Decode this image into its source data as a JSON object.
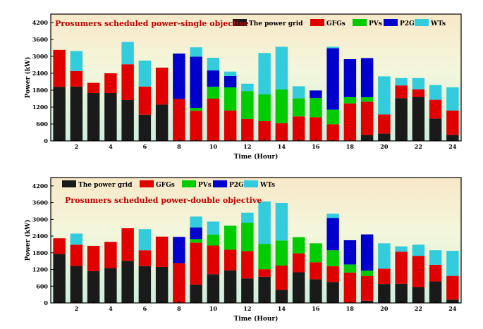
{
  "chart_data": [
    {
      "type": "bar",
      "stacked": true,
      "title": "Prosumers scheduled power-single objective",
      "xlabel": "Time (Hour)",
      "ylabel": "Power (kW)",
      "ylim": [
        0,
        4500
      ],
      "yticks": [
        0,
        600,
        1200,
        1800,
        2400,
        3000,
        3600,
        4200
      ],
      "xticks": [
        2,
        4,
        6,
        8,
        10,
        12,
        14,
        16,
        18,
        20,
        22,
        24
      ],
      "legend_position": "top-right",
      "categories": [
        1,
        2,
        3,
        4,
        5,
        6,
        7,
        8,
        9,
        10,
        11,
        12,
        13,
        14,
        15,
        16,
        17,
        18,
        19,
        20,
        21,
        22,
        23,
        24
      ],
      "series": [
        {
          "name": "The power grid",
          "color": "#1a1a1a",
          "values": [
            1920,
            1930,
            1700,
            1700,
            1450,
            930,
            1290,
            0,
            0,
            0,
            0,
            0,
            0,
            0,
            0,
            0,
            0,
            0,
            210,
            260,
            1520,
            1560,
            790,
            210
          ]
        },
        {
          "name": "GFGs",
          "color": "#e00000",
          "values": [
            1310,
            550,
            360,
            700,
            1270,
            1000,
            1310,
            1490,
            1070,
            1500,
            1080,
            780,
            700,
            630,
            870,
            840,
            590,
            1330,
            1180,
            680,
            450,
            270,
            670,
            870
          ]
        },
        {
          "name": "PVs",
          "color": "#00cc00",
          "values": [
            0,
            0,
            0,
            0,
            0,
            0,
            0,
            0,
            100,
            420,
            820,
            990,
            950,
            1200,
            640,
            680,
            520,
            220,
            160,
            0,
            0,
            0,
            0,
            0
          ]
        },
        {
          "name": "P2Gs",
          "color": "#0000cc",
          "values": [
            0,
            0,
            0,
            0,
            0,
            0,
            0,
            1610,
            1820,
            580,
            400,
            0,
            0,
            0,
            0,
            270,
            2180,
            1350,
            1390,
            0,
            0,
            0,
            0,
            0
          ]
        },
        {
          "name": "WTs",
          "color": "#33ccdd",
          "values": [
            0,
            710,
            0,
            0,
            790,
            920,
            0,
            0,
            330,
            450,
            160,
            260,
            1470,
            1510,
            430,
            0,
            50,
            0,
            0,
            1350,
            260,
            400,
            520,
            820
          ]
        }
      ]
    },
    {
      "type": "bar",
      "stacked": true,
      "title": "Prosumers scheduled power-double objective",
      "xlabel": "Time (Hour)",
      "ylabel": "Power (kW)",
      "ylim": [
        0,
        4500
      ],
      "yticks": [
        0,
        600,
        1200,
        1800,
        2400,
        3000,
        3600,
        4200
      ],
      "xticks": [
        2,
        4,
        6,
        8,
        10,
        12,
        14,
        16,
        18,
        20,
        22,
        24
      ],
      "legend_position": "top-left",
      "categories": [
        1,
        2,
        3,
        4,
        5,
        6,
        7,
        8,
        9,
        10,
        11,
        12,
        13,
        14,
        15,
        16,
        17,
        18,
        19,
        20,
        21,
        22,
        23,
        24
      ],
      "series": [
        {
          "name": "The power grid",
          "color": "#1a1a1a",
          "values": [
            1760,
            1330,
            1140,
            1250,
            1510,
            1320,
            1290,
            0,
            660,
            1030,
            1170,
            880,
            940,
            470,
            1100,
            850,
            750,
            0,
            80,
            680,
            690,
            570,
            770,
            120
          ]
        },
        {
          "name": "GFGs",
          "color": "#e00000",
          "values": [
            560,
            760,
            910,
            940,
            1170,
            570,
            1090,
            1430,
            1500,
            1030,
            740,
            980,
            270,
            870,
            680,
            610,
            570,
            1090,
            890,
            550,
            1150,
            1120,
            600,
            850
          ]
        },
        {
          "name": "PVs",
          "color": "#00cc00",
          "values": [
            0,
            0,
            0,
            0,
            0,
            0,
            0,
            0,
            130,
            390,
            860,
            1020,
            910,
            900,
            580,
            680,
            570,
            290,
            190,
            0,
            0,
            0,
            0,
            0
          ]
        },
        {
          "name": "P2Gs",
          "color": "#0000cc",
          "values": [
            0,
            0,
            0,
            0,
            0,
            0,
            0,
            940,
            420,
            0,
            0,
            0,
            0,
            0,
            0,
            0,
            1160,
            870,
            1300,
            0,
            0,
            0,
            0,
            0
          ]
        },
        {
          "name": "WTs",
          "color": "#33ccdd",
          "values": [
            0,
            400,
            0,
            0,
            0,
            760,
            0,
            0,
            390,
            470,
            0,
            360,
            1520,
            1350,
            0,
            0,
            150,
            0,
            0,
            910,
            190,
            400,
            520,
            900
          ]
        }
      ]
    }
  ]
}
